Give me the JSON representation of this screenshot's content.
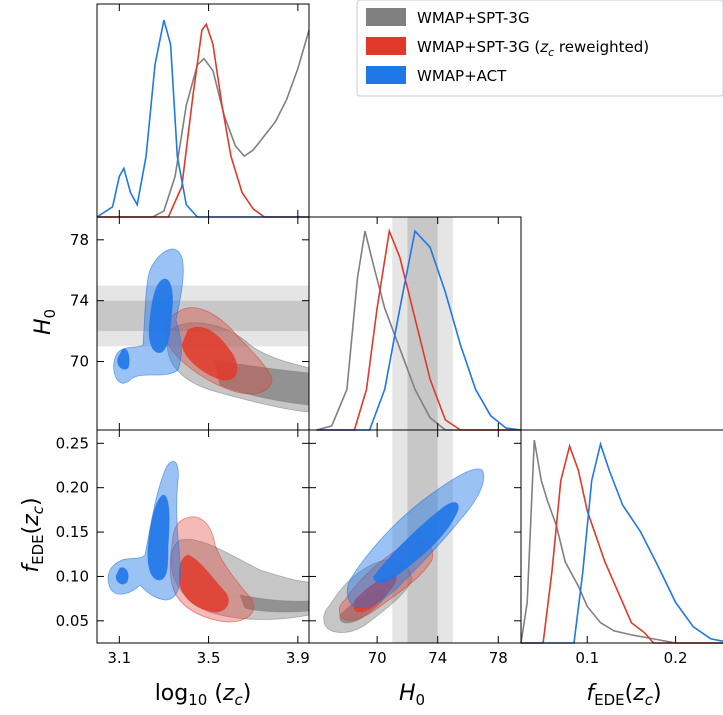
{
  "chart_data": {
    "type": "triangle",
    "legend": {
      "placement": "top-right",
      "entries": [
        {
          "label": "WMAP+SPT-3G",
          "color": "#808080"
        },
        {
          "label_pre": "WMAP+SPT-3G (",
          "label_var": "z",
          "label_sub": "c",
          "label_post": " reweighted)",
          "color": "#e0392b"
        },
        {
          "label": "WMAP+ACT",
          "color": "#1f77e8"
        }
      ]
    },
    "parameters": {
      "log10zc": {
        "label": "log₁₀ (z_c)",
        "range": [
          3.0,
          3.95
        ],
        "ticks": [
          3.1,
          3.5,
          3.9
        ]
      },
      "H0": {
        "label": "H₀",
        "range": [
          65.5,
          79.5
        ],
        "ticks": [
          70,
          74,
          78
        ]
      },
      "fEDE": {
        "label": "f_EDE(z_c)",
        "range": [
          0.025,
          0.265
        ],
        "ticks": [
          0.05,
          0.1,
          0.15,
          0.2,
          0.25
        ],
        "marginal_ticks": [
          0.1,
          0.2
        ],
        "marginal_tick_labels": [
          "0.1",
          "0.2"
        ]
      }
    },
    "h0_bands": {
      "inner": [
        72.0,
        74.0
      ],
      "outer": [
        71.0,
        75.0
      ]
    },
    "series": [
      {
        "name": "WMAP+SPT-3G",
        "color": "#808080",
        "marginals": {
          "log10zc": [
            [
              3.0,
              0.0
            ],
            [
              3.25,
              0.0
            ],
            [
              3.3,
              0.03
            ],
            [
              3.35,
              0.2
            ],
            [
              3.4,
              0.55
            ],
            [
              3.45,
              0.75
            ],
            [
              3.48,
              0.78
            ],
            [
              3.52,
              0.72
            ],
            [
              3.57,
              0.5
            ],
            [
              3.62,
              0.35
            ],
            [
              3.66,
              0.3
            ],
            [
              3.7,
              0.33
            ],
            [
              3.75,
              0.4
            ],
            [
              3.8,
              0.47
            ],
            [
              3.85,
              0.58
            ],
            [
              3.9,
              0.73
            ],
            [
              3.95,
              0.92
            ]
          ],
          "H0": [
            [
              66.0,
              0.0
            ],
            [
              67.0,
              0.02
            ],
            [
              68.0,
              0.2
            ],
            [
              68.7,
              0.75
            ],
            [
              69.2,
              0.98
            ],
            [
              69.8,
              0.8
            ],
            [
              70.5,
              0.6
            ],
            [
              71.5,
              0.4
            ],
            [
              72.5,
              0.2
            ],
            [
              73.5,
              0.06
            ],
            [
              74.5,
              0.0
            ],
            [
              79.5,
              0.0
            ]
          ],
          "fEDE": [
            [
              0.025,
              0.0
            ],
            [
              0.032,
              0.2
            ],
            [
              0.04,
              1.0
            ],
            [
              0.048,
              0.8
            ],
            [
              0.055,
              0.7
            ],
            [
              0.065,
              0.58
            ],
            [
              0.075,
              0.4
            ],
            [
              0.09,
              0.28
            ],
            [
              0.1,
              0.18
            ],
            [
              0.115,
              0.1
            ],
            [
              0.13,
              0.06
            ],
            [
              0.15,
              0.04
            ],
            [
              0.175,
              0.02
            ],
            [
              0.2,
              0.0
            ],
            [
              0.265,
              0.0
            ]
          ]
        }
      },
      {
        "name": "WMAP+SPT-3G (zc reweighted)",
        "color": "#e0392b",
        "marginals": {
          "log10zc": [
            [
              3.0,
              0.0
            ],
            [
              3.32,
              0.0
            ],
            [
              3.38,
              0.15
            ],
            [
              3.43,
              0.6
            ],
            [
              3.47,
              0.92
            ],
            [
              3.49,
              0.95
            ],
            [
              3.52,
              0.85
            ],
            [
              3.56,
              0.55
            ],
            [
              3.6,
              0.3
            ],
            [
              3.65,
              0.12
            ],
            [
              3.7,
              0.04
            ],
            [
              3.75,
              0.0
            ],
            [
              3.95,
              0.0
            ]
          ],
          "H0": [
            [
              66.0,
              0.0
            ],
            [
              68.5,
              0.0
            ],
            [
              69.3,
              0.2
            ],
            [
              70.0,
              0.6
            ],
            [
              70.8,
              0.98
            ],
            [
              71.5,
              0.85
            ],
            [
              72.5,
              0.55
            ],
            [
              73.5,
              0.25
            ],
            [
              74.5,
              0.05
            ],
            [
              75.5,
              0.0
            ],
            [
              79.5,
              0.0
            ]
          ],
          "fEDE": [
            [
              0.025,
              0.0
            ],
            [
              0.05,
              0.0
            ],
            [
              0.06,
              0.35
            ],
            [
              0.07,
              0.8
            ],
            [
              0.08,
              0.97
            ],
            [
              0.09,
              0.85
            ],
            [
              0.1,
              0.65
            ],
            [
              0.12,
              0.4
            ],
            [
              0.14,
              0.2
            ],
            [
              0.15,
              0.1
            ],
            [
              0.165,
              0.05
            ],
            [
              0.175,
              0.0
            ],
            [
              0.265,
              0.0
            ]
          ]
        }
      },
      {
        "name": "WMAP+ACT",
        "color": "#1f77e8",
        "marginals": {
          "log10zc": [
            [
              3.0,
              0.0
            ],
            [
              3.07,
              0.05
            ],
            [
              3.1,
              0.2
            ],
            [
              3.12,
              0.24
            ],
            [
              3.15,
              0.12
            ],
            [
              3.18,
              0.06
            ],
            [
              3.22,
              0.3
            ],
            [
              3.26,
              0.75
            ],
            [
              3.3,
              0.97
            ],
            [
              3.33,
              0.85
            ],
            [
              3.36,
              0.3
            ],
            [
              3.4,
              0.06
            ],
            [
              3.45,
              0.0
            ],
            [
              3.95,
              0.0
            ]
          ],
          "H0": [
            [
              66.0,
              0.0
            ],
            [
              69.5,
              0.0
            ],
            [
              70.5,
              0.2
            ],
            [
              71.5,
              0.6
            ],
            [
              72.5,
              0.98
            ],
            [
              73.5,
              0.9
            ],
            [
              74.5,
              0.68
            ],
            [
              75.5,
              0.42
            ],
            [
              76.5,
              0.2
            ],
            [
              77.5,
              0.07
            ],
            [
              78.5,
              0.01
            ],
            [
              79.5,
              0.0
            ]
          ],
          "fEDE": [
            [
              0.025,
              0.0
            ],
            [
              0.085,
              0.0
            ],
            [
              0.095,
              0.35
            ],
            [
              0.105,
              0.8
            ],
            [
              0.115,
              0.98
            ],
            [
              0.125,
              0.85
            ],
            [
              0.14,
              0.68
            ],
            [
              0.16,
              0.55
            ],
            [
              0.18,
              0.38
            ],
            [
              0.2,
              0.2
            ],
            [
              0.22,
              0.08
            ],
            [
              0.24,
              0.02
            ],
            [
              0.265,
              0.0
            ]
          ]
        }
      }
    ]
  }
}
